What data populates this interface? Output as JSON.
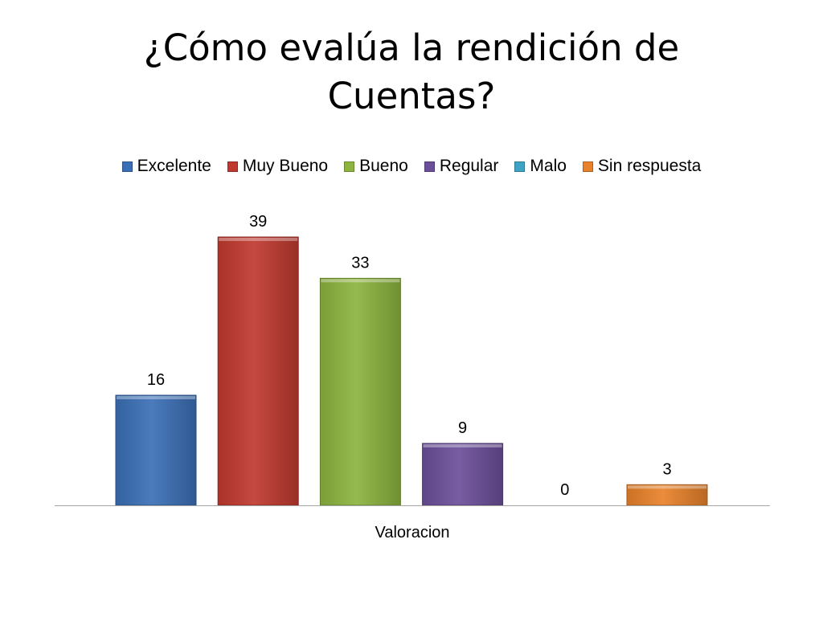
{
  "title": "¿Cómo evalúa la rendición de Cuentas?",
  "chart_data": {
    "type": "bar",
    "title": "¿Cómo evalúa la rendición de Cuentas?",
    "xlabel": "Valoracion",
    "ylabel": "",
    "categories": [
      "Valoracion"
    ],
    "series": [
      {
        "name": "Excelente",
        "values": [
          16
        ],
        "color": "#3b6fb6"
      },
      {
        "name": "Muy Bueno",
        "values": [
          39
        ],
        "color": "#c0392f"
      },
      {
        "name": "Bueno",
        "values": [
          33
        ],
        "color": "#8cb43f"
      },
      {
        "name": "Regular",
        "values": [
          9
        ],
        "color": "#6c4f9a"
      },
      {
        "name": "Malo",
        "values": [
          0
        ],
        "color": "#3ea3c4"
      },
      {
        "name": "Sin respuesta",
        "values": [
          3
        ],
        "color": "#e8822a"
      }
    ],
    "ylim": [
      0,
      39
    ],
    "grid": false,
    "legend": "top",
    "data_labels": true
  }
}
